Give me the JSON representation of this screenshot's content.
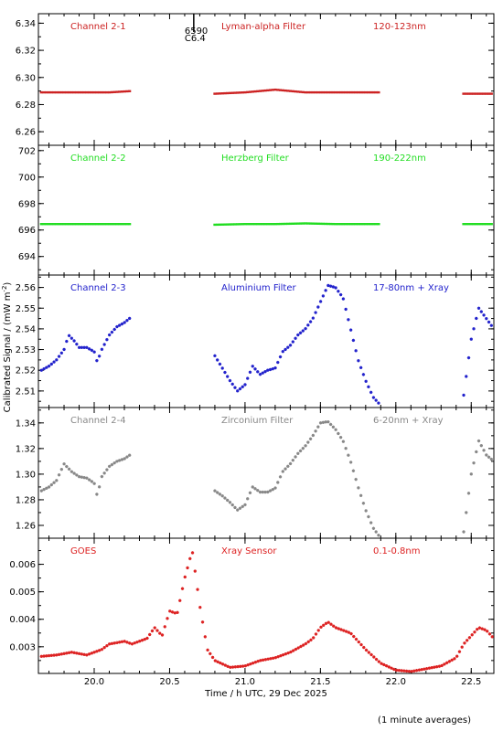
{
  "chart_data": {
    "type": "scatter",
    "xlabel": "Time / h UTC, 29 Dec 2025",
    "ylabel": "Calibrated Signal / (mW m",
    "ylabel_sup": "-2",
    "ylabel_close": ")",
    "note": "(1 minute averages)",
    "xlim": [
      19.63,
      22.65
    ],
    "xticks": [
      20.0,
      20.5,
      21.0,
      21.5,
      22.0,
      22.5
    ],
    "xtick_labels": [
      "20.0",
      "20.5",
      "21.0",
      "21.5",
      "22.0",
      "22.5"
    ],
    "panels": [
      {
        "id": "p1",
        "channel": "Channel 2-1",
        "filter": "Lyman-alpha Filter",
        "band": "120-123nm",
        "color": "#cc2222",
        "ylim": [
          6.25,
          6.347
        ],
        "yticks": [
          6.26,
          6.28,
          6.3,
          6.32,
          6.34
        ],
        "ytick_labels": [
          "6.26",
          "6.28",
          "6.30",
          "6.32",
          "6.34"
        ],
        "marker": "dash",
        "annotation": {
          "x": 20.66,
          "line1": "6590",
          "line2": "C6.4"
        },
        "series": [
          {
            "x": [
              19.65,
              19.8,
              19.95,
              20.1,
              20.25
            ],
            "y": [
              6.289,
              6.289,
              6.289,
              6.289,
              6.29
            ]
          },
          {
            "x": [
              20.8,
              21.0,
              21.2,
              21.4,
              21.6,
              21.9
            ],
            "y": [
              6.288,
              6.289,
              6.291,
              6.289,
              6.289,
              6.289
            ]
          },
          {
            "x": [
              22.45,
              22.65
            ],
            "y": [
              6.288,
              6.288
            ]
          }
        ]
      },
      {
        "id": "p2",
        "channel": "Channel 2-2",
        "filter": "Herzberg Filter",
        "band": "190-222nm",
        "color": "#22dd22",
        "ylim": [
          692.6,
          702.4
        ],
        "yticks": [
          694,
          696,
          698,
          700,
          702
        ],
        "ytick_labels": [
          "694",
          "696",
          "698",
          "700",
          "702"
        ],
        "marker": "dash",
        "series": [
          {
            "x": [
              19.65,
              19.9,
              20.1,
              20.25
            ],
            "y": [
              696.45,
              696.45,
              696.45,
              696.45
            ]
          },
          {
            "x": [
              20.8,
              21.0,
              21.2,
              21.4,
              21.6,
              21.9
            ],
            "y": [
              696.4,
              696.45,
              696.45,
              696.5,
              696.45,
              696.45
            ]
          },
          {
            "x": [
              22.45,
              22.65
            ],
            "y": [
              696.45,
              696.45
            ]
          }
        ]
      },
      {
        "id": "p3",
        "channel": "Channel 2-3",
        "filter": "Aluminium Filter",
        "band": "17-80nm + Xray",
        "color": "#2222cc",
        "ylim": [
          2.502,
          2.566
        ],
        "yticks": [
          2.51,
          2.52,
          2.53,
          2.54,
          2.55,
          2.56
        ],
        "ytick_labels": [
          "2.51",
          "2.52",
          "2.53",
          "2.54",
          "2.55",
          "2.56"
        ],
        "marker": "star",
        "series": [
          {
            "x": [
              19.65,
              19.7,
              19.75,
              19.8,
              19.83,
              19.87,
              19.9,
              19.95,
              20.0,
              20.02,
              20.05,
              20.1,
              20.15,
              20.2,
              20.25
            ],
            "y": [
              2.52,
              2.522,
              2.525,
              2.53,
              2.537,
              2.534,
              2.531,
              2.531,
              2.529,
              2.524,
              2.53,
              2.537,
              2.541,
              2.543,
              2.546
            ]
          },
          {
            "x": [
              20.8,
              20.85,
              20.9,
              20.95,
              21.0,
              21.05,
              21.1,
              21.15,
              21.2,
              21.25,
              21.3,
              21.35,
              21.4,
              21.45,
              21.5,
              21.55,
              21.6,
              21.65,
              21.7,
              21.75,
              21.8,
              21.85,
              21.9
            ],
            "y": [
              2.527,
              2.521,
              2.515,
              2.51,
              2.513,
              2.522,
              2.518,
              2.52,
              2.521,
              2.529,
              2.532,
              2.537,
              2.54,
              2.545,
              2.553,
              2.561,
              2.56,
              2.555,
              2.54,
              2.525,
              2.515,
              2.507,
              2.503
            ]
          },
          {
            "x": [
              22.45,
              22.5,
              22.55,
              22.6,
              22.65
            ],
            "y": [
              2.508,
              2.535,
              2.55,
              2.545,
              2.54
            ]
          }
        ]
      },
      {
        "id": "p4",
        "channel": "Channel 2-4",
        "filter": "Zirconium Filter",
        "band": "6-20nm + Xray",
        "color": "#888888",
        "ylim": [
          1.25,
          1.352
        ],
        "yticks": [
          1.26,
          1.28,
          1.3,
          1.32,
          1.34
        ],
        "ytick_labels": [
          "1.26",
          "1.28",
          "1.30",
          "1.32",
          "1.34"
        ],
        "marker": "star",
        "series": [
          {
            "x": [
              19.65,
              19.7,
              19.75,
              19.8,
              19.85,
              19.9,
              19.95,
              20.0,
              20.02,
              20.05,
              20.1,
              20.15,
              20.2,
              20.25
            ],
            "y": [
              1.287,
              1.29,
              1.295,
              1.308,
              1.302,
              1.298,
              1.297,
              1.293,
              1.283,
              1.298,
              1.306,
              1.31,
              1.312,
              1.316
            ]
          },
          {
            "x": [
              20.8,
              20.85,
              20.9,
              20.95,
              21.0,
              21.05,
              21.1,
              21.15,
              21.2,
              21.25,
              21.3,
              21.35,
              21.4,
              21.45,
              21.5,
              21.55,
              21.6,
              21.65,
              21.7,
              21.75,
              21.8,
              21.85,
              21.9
            ],
            "y": [
              1.287,
              1.283,
              1.278,
              1.272,
              1.276,
              1.29,
              1.286,
              1.286,
              1.289,
              1.302,
              1.308,
              1.316,
              1.322,
              1.33,
              1.34,
              1.341,
              1.335,
              1.326,
              1.31,
              1.29,
              1.272,
              1.258,
              1.25
            ]
          },
          {
            "x": [
              22.45,
              22.5,
              22.55,
              22.6,
              22.65
            ],
            "y": [
              1.255,
              1.3,
              1.326,
              1.315,
              1.31
            ]
          }
        ]
      },
      {
        "id": "p5",
        "channel": "GOES",
        "filter": "Xray Sensor",
        "band": "0.1-0.8nm",
        "color": "#dd2222",
        "ylim": [
          0.00203,
          0.00695
        ],
        "yticks": [
          0.003,
          0.004,
          0.005,
          0.006
        ],
        "ytick_labels": [
          "0.003",
          "0.004",
          "0.005",
          "0.006"
        ],
        "marker": "star",
        "series": [
          {
            "x": [
              19.65,
              19.75,
              19.85,
              19.95,
              20.05,
              20.1,
              20.2,
              20.25,
              20.3,
              20.35,
              20.4,
              20.45,
              20.5,
              20.55,
              20.6,
              20.65,
              20.7,
              20.75,
              20.8,
              20.9,
              21.0,
              21.1,
              21.2,
              21.3,
              21.4,
              21.45,
              21.5,
              21.55,
              21.6,
              21.7,
              21.8,
              21.9,
              22.0,
              22.1,
              22.2,
              22.3,
              22.4,
              22.45,
              22.5,
              22.55,
              22.6,
              22.65
            ],
            "y": [
              0.00265,
              0.0027,
              0.0028,
              0.0027,
              0.0029,
              0.0031,
              0.0032,
              0.0031,
              0.0032,
              0.0033,
              0.0037,
              0.0034,
              0.0043,
              0.0042,
              0.0055,
              0.0065,
              0.0045,
              0.0029,
              0.0025,
              0.00225,
              0.0023,
              0.0025,
              0.0026,
              0.0028,
              0.0031,
              0.0033,
              0.0037,
              0.0039,
              0.0037,
              0.0035,
              0.0029,
              0.0024,
              0.00215,
              0.0021,
              0.0022,
              0.0023,
              0.0026,
              0.0031,
              0.0034,
              0.0037,
              0.0036,
              0.0033
            ]
          }
        ]
      }
    ]
  }
}
